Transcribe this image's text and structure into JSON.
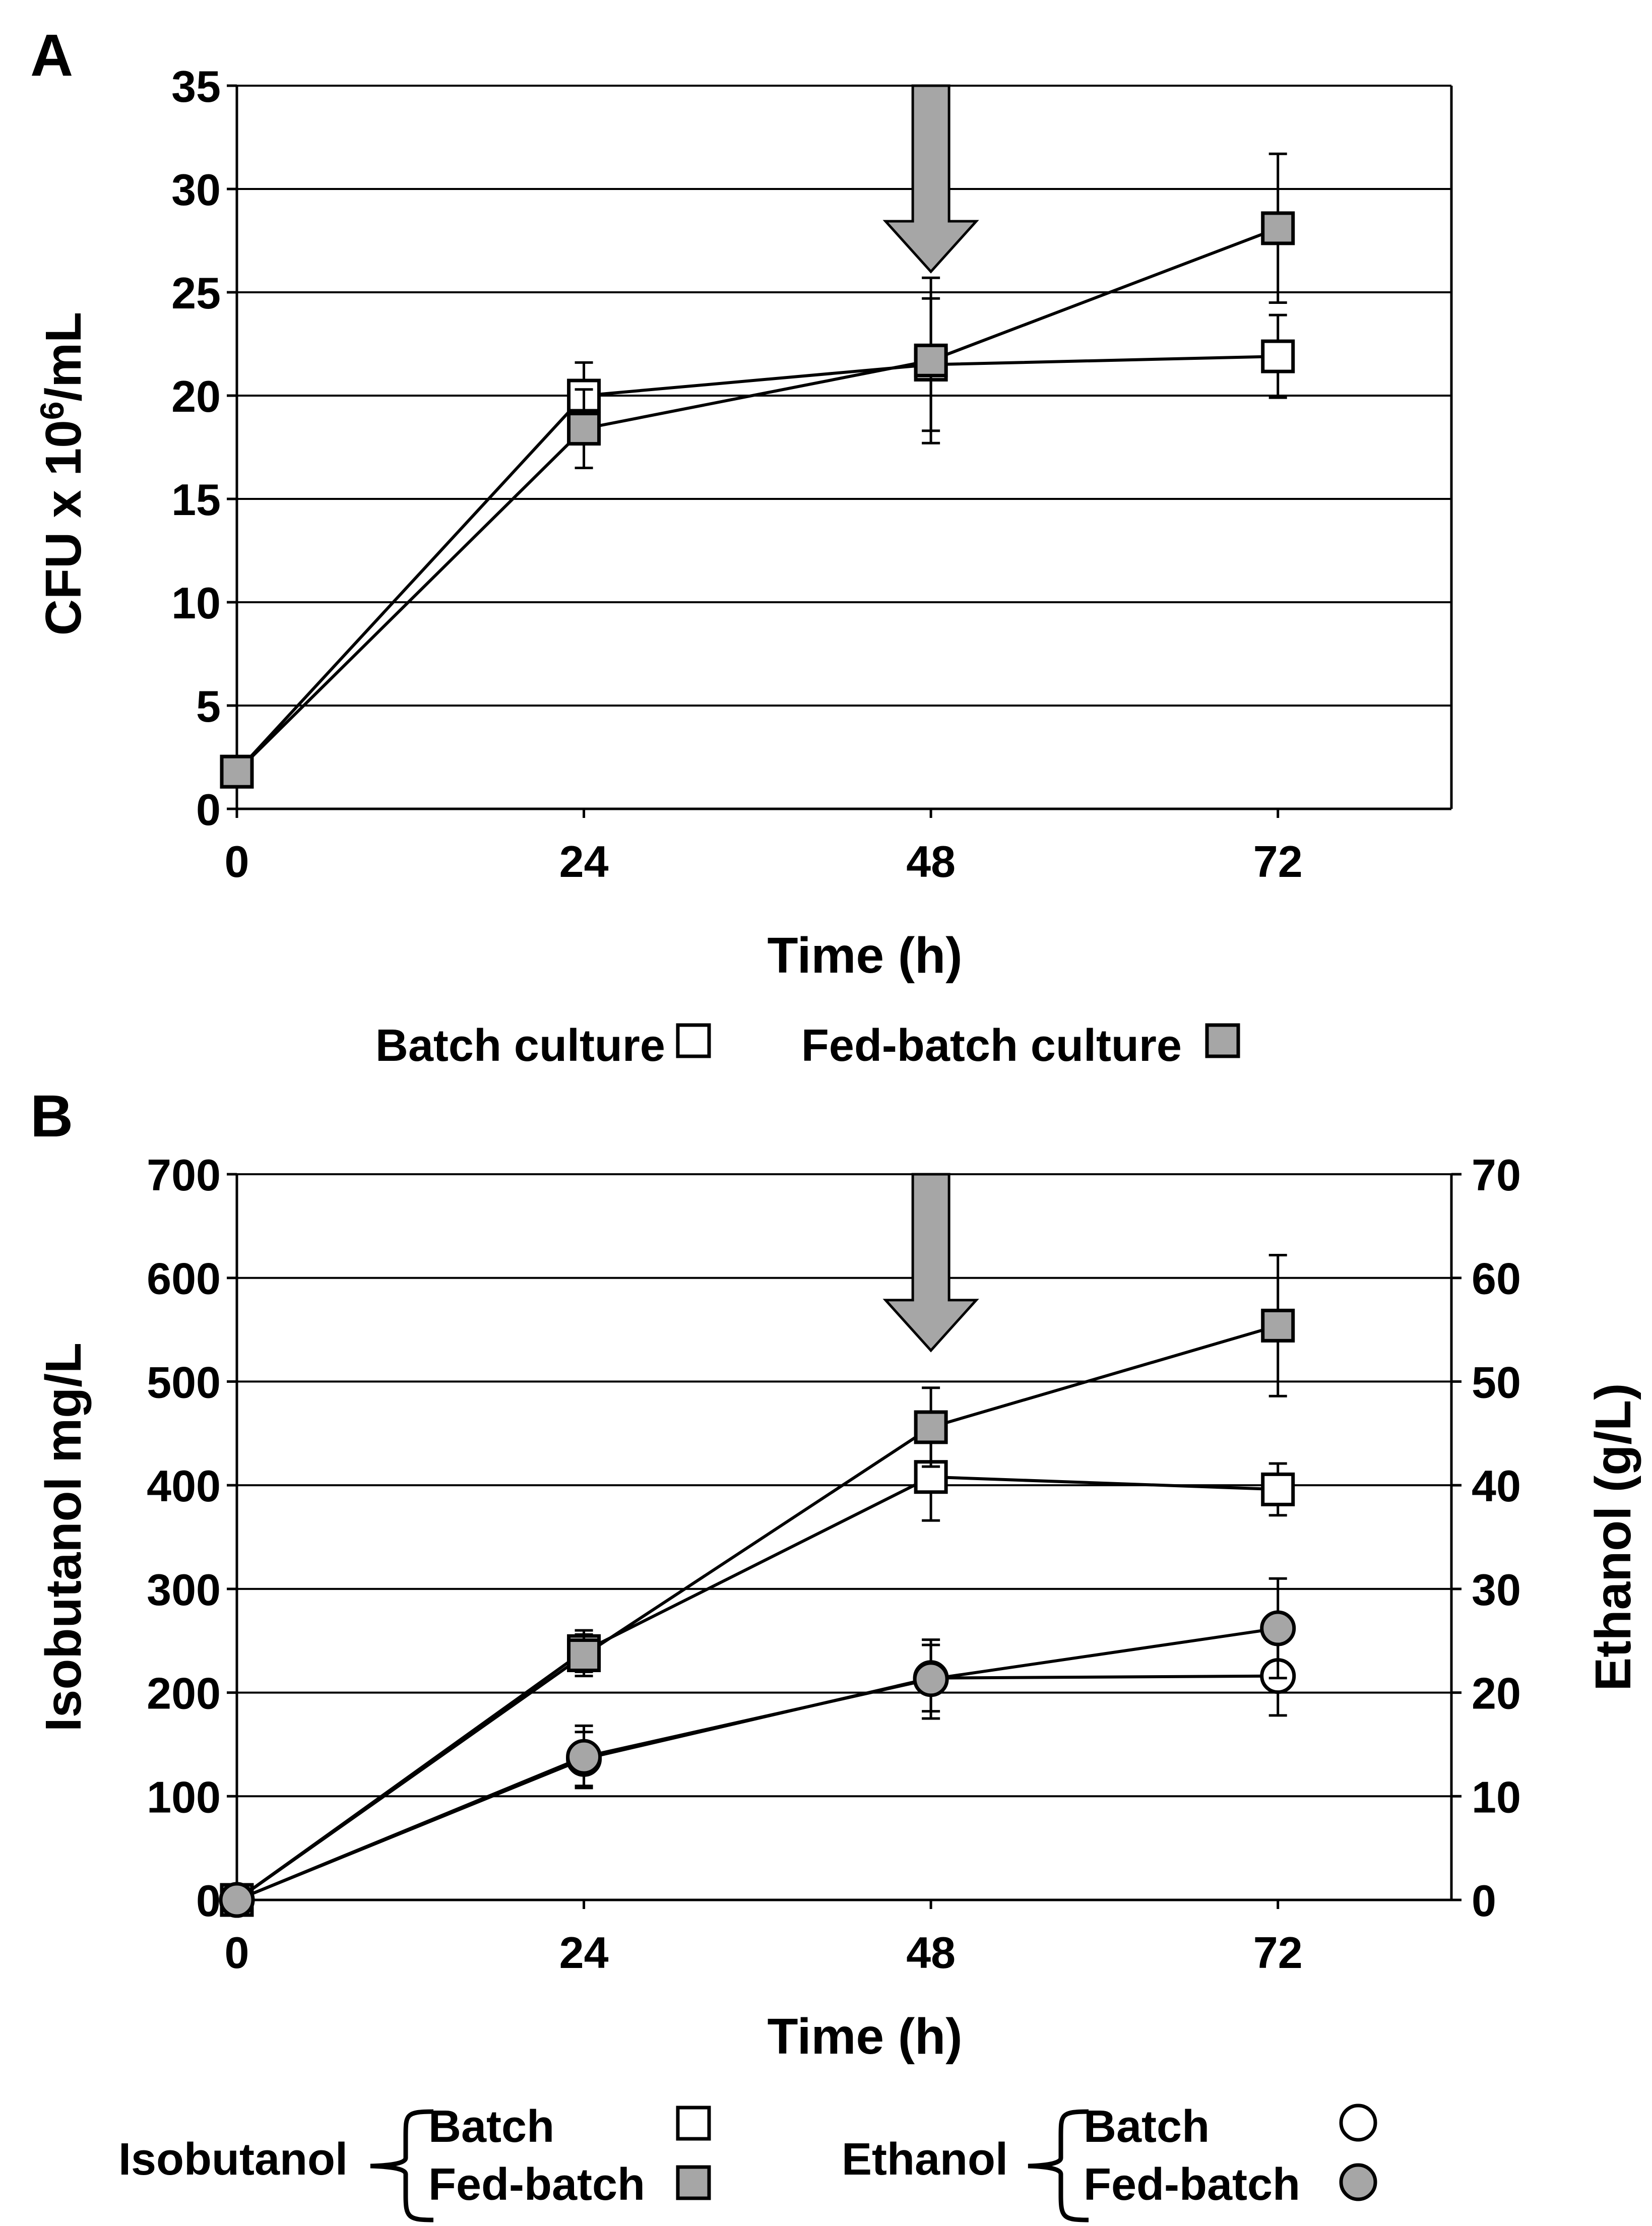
{
  "chart_data": [
    {
      "panel_label": "A",
      "type": "line",
      "xlabel": "Time (h)",
      "ylabel_pre": "CFU x 10",
      "ylabel_sup": "6",
      "ylabel_post": "/mL",
      "xlim": [
        0,
        84
      ],
      "ylim": [
        0,
        35
      ],
      "x_ticks": [
        0,
        24,
        48,
        72
      ],
      "x_tick_labels": [
        "0",
        "24",
        "48",
        "72"
      ],
      "y_ticks": [
        0,
        5,
        10,
        15,
        20,
        25,
        30,
        35
      ],
      "y_tick_labels": [
        "0",
        "5",
        "10",
        "15",
        "20",
        "25",
        "30",
        "35"
      ],
      "grid": true,
      "annotation": {
        "type": "arrow-down",
        "at_x": 48,
        "from_y": 35,
        "to_y": 26
      },
      "series": [
        {
          "name": "Batch culture",
          "marker": "square",
          "fill": "#ffffff",
          "x": [
            0,
            24,
            48,
            72
          ],
          "values": [
            1.8,
            20.0,
            21.5,
            21.9
          ],
          "error": [
            0,
            1.6,
            3.2,
            2.0
          ]
        },
        {
          "name": "Fed-batch culture",
          "marker": "square",
          "fill": "#a6a6a6",
          "x": [
            0,
            24,
            48,
            72
          ],
          "values": [
            1.8,
            18.4,
            21.7,
            28.1
          ],
          "error": [
            0,
            1.9,
            4.0,
            3.6
          ]
        }
      ],
      "legend": {
        "placement": "bottom-center",
        "items": [
          "Batch culture",
          "Fed-batch culture"
        ]
      }
    },
    {
      "panel_label": "B",
      "type": "line",
      "xlabel": "Time (h)",
      "ylabel": "Isobutanol mg/L",
      "y2label": "Ethanol (g/L)",
      "xlim": [
        0,
        84
      ],
      "ylim": [
        0,
        700
      ],
      "y2lim": [
        0,
        70
      ],
      "x_ticks": [
        0,
        24,
        48,
        72
      ],
      "x_tick_labels": [
        "0",
        "24",
        "48",
        "72"
      ],
      "y_ticks": [
        0,
        100,
        200,
        300,
        400,
        500,
        600,
        700
      ],
      "y_tick_labels": [
        "0",
        "100",
        "200",
        "300",
        "400",
        "500",
        "600",
        "700"
      ],
      "y2_ticks": [
        0,
        10,
        20,
        30,
        40,
        50,
        60,
        70
      ],
      "y2_tick_labels": [
        "0",
        "10",
        "20",
        "30",
        "40",
        "50",
        "60",
        "70"
      ],
      "grid": true,
      "annotation": {
        "type": "arrow-down",
        "at_x": 48,
        "from_y": 700,
        "to_y": 530
      },
      "series": [
        {
          "name": "Isobutanol Batch",
          "axis": "left",
          "marker": "square",
          "fill": "#ffffff",
          "x": [
            0,
            24,
            48,
            72
          ],
          "values": [
            0,
            240,
            408,
            396
          ],
          "error": [
            0,
            20,
            42,
            25
          ]
        },
        {
          "name": "Isobutanol Fed-batch",
          "axis": "left",
          "marker": "square",
          "fill": "#a6a6a6",
          "x": [
            0,
            24,
            48,
            72
          ],
          "values": [
            0,
            236,
            456,
            554
          ],
          "error": [
            0,
            20,
            38,
            68
          ]
        },
        {
          "name": "Ethanol Batch",
          "axis": "right",
          "marker": "circle",
          "fill": "#ffffff",
          "x": [
            0,
            24,
            48,
            72
          ],
          "values": [
            0,
            13.6,
            21.4,
            21.6
          ],
          "error": [
            0,
            2.6,
            3.2,
            3.8
          ]
        },
        {
          "name": "Ethanol Fed-batch",
          "axis": "right",
          "marker": "circle",
          "fill": "#a6a6a6",
          "x": [
            0,
            24,
            48,
            72
          ],
          "values": [
            0,
            13.8,
            21.3,
            26.2
          ],
          "error": [
            0,
            3.0,
            3.8,
            4.8
          ]
        }
      ],
      "legend": {
        "placement": "bottom",
        "groups": [
          {
            "label": "Isobutanol",
            "items": [
              "Batch",
              "Fed-batch"
            ]
          },
          {
            "label": "Ethanol",
            "items": [
              "Batch",
              "Fed-batch"
            ]
          }
        ]
      }
    }
  ]
}
